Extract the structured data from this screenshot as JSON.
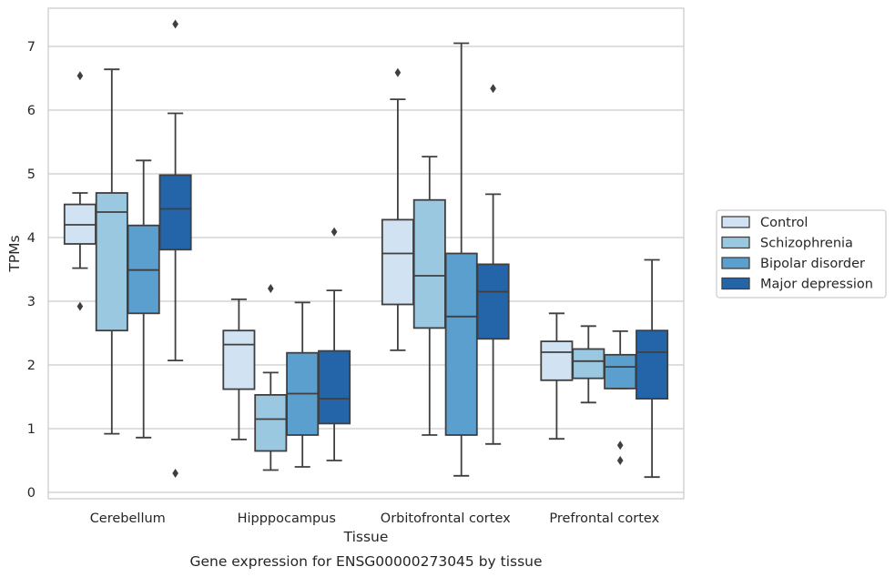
{
  "caption": "Gene expression for ENSG00000273045 by tissue",
  "chart_data": {
    "type": "box",
    "title": "",
    "xlabel": "Tissue",
    "ylabel": "TPMs",
    "ylim": [
      -0.1,
      7.6
    ],
    "yticks": [
      0,
      1,
      2,
      3,
      4,
      5,
      6,
      7
    ],
    "grid": "horizontal",
    "legend_position": "right",
    "categories": [
      "Cerebellum",
      "Hipppocampus",
      "Orbitofrontal cortex",
      "Prefrontal cortex"
    ],
    "series": [
      {
        "name": "Control",
        "color": "#d1e2f2",
        "boxes": [
          {
            "whislo": 3.52,
            "q1": 3.9,
            "med": 4.2,
            "q3": 4.52,
            "whishi": 4.7,
            "fliers": [
              6.54,
              2.92
            ]
          },
          {
            "whislo": 0.83,
            "q1": 1.62,
            "med": 2.32,
            "q3": 2.54,
            "whishi": 3.03,
            "fliers": []
          },
          {
            "whislo": 2.23,
            "q1": 2.95,
            "med": 3.75,
            "q3": 4.28,
            "whishi": 6.17,
            "fliers": [
              6.59
            ]
          },
          {
            "whislo": 0.84,
            "q1": 1.76,
            "med": 2.2,
            "q3": 2.37,
            "whishi": 2.81,
            "fliers": []
          }
        ]
      },
      {
        "name": "Schizophrenia",
        "color": "#9ac8e0",
        "boxes": [
          {
            "whislo": 0.92,
            "q1": 2.54,
            "med": 4.4,
            "q3": 4.7,
            "whishi": 6.64,
            "fliers": []
          },
          {
            "whislo": 0.35,
            "q1": 0.65,
            "med": 1.15,
            "q3": 1.53,
            "whishi": 1.88,
            "fliers": [
              3.2
            ]
          },
          {
            "whislo": 0.9,
            "q1": 2.58,
            "med": 3.4,
            "q3": 4.59,
            "whishi": 5.27,
            "fliers": []
          },
          {
            "whislo": 1.41,
            "q1": 1.79,
            "med": 2.06,
            "q3": 2.25,
            "whishi": 2.61,
            "fliers": []
          }
        ]
      },
      {
        "name": "Bipolar disorder",
        "color": "#5a9fcd",
        "boxes": [
          {
            "whislo": 0.86,
            "q1": 2.81,
            "med": 3.49,
            "q3": 4.19,
            "whishi": 5.21,
            "fliers": []
          },
          {
            "whislo": 0.4,
            "q1": 0.9,
            "med": 1.55,
            "q3": 2.19,
            "whishi": 2.98,
            "fliers": []
          },
          {
            "whislo": 0.26,
            "q1": 0.9,
            "med": 2.76,
            "q3": 3.75,
            "whishi": 7.05,
            "fliers": []
          },
          {
            "whislo": 1.63,
            "q1": 1.63,
            "med": 1.97,
            "q3": 2.16,
            "whishi": 2.53,
            "fliers": [
              0.74,
              0.5
            ]
          }
        ]
      },
      {
        "name": "Major depression",
        "color": "#2464a8",
        "boxes": [
          {
            "whislo": 2.07,
            "q1": 3.81,
            "med": 4.45,
            "q3": 4.98,
            "whishi": 5.95,
            "fliers": [
              7.35,
              0.3
            ]
          },
          {
            "whislo": 0.5,
            "q1": 1.08,
            "med": 1.47,
            "q3": 2.22,
            "whishi": 3.17,
            "fliers": [
              4.09
            ]
          },
          {
            "whislo": 0.76,
            "q1": 2.41,
            "med": 3.15,
            "q3": 3.58,
            "whishi": 4.68,
            "fliers": [
              6.34
            ]
          },
          {
            "whislo": 0.24,
            "q1": 1.47,
            "med": 2.2,
            "q3": 2.54,
            "whishi": 3.65,
            "fliers": []
          }
        ]
      }
    ]
  }
}
